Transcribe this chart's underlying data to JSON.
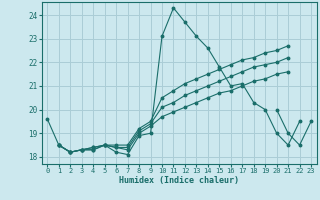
{
  "xlabel": "Humidex (Indice chaleur)",
  "background_color": "#cce8ee",
  "grid_color": "#aacdd6",
  "line_color": "#1a6e6a",
  "xlim": [
    -0.5,
    23.5
  ],
  "ylim": [
    17.7,
    24.55
  ],
  "xticks": [
    0,
    1,
    2,
    3,
    4,
    5,
    6,
    7,
    8,
    9,
    10,
    11,
    12,
    13,
    14,
    15,
    16,
    17,
    18,
    19,
    20,
    21,
    22,
    23
  ],
  "yticks": [
    18,
    19,
    20,
    21,
    22,
    23,
    24
  ],
  "series": [
    [
      19.6,
      18.5,
      18.2,
      18.3,
      18.3,
      18.5,
      18.2,
      18.1,
      18.9,
      19.0,
      23.1,
      24.3,
      23.7,
      23.1,
      22.6,
      21.8,
      21.0,
      21.1,
      20.3,
      20.0,
      19.0,
      18.5,
      19.5,
      null
    ],
    [
      null,
      18.5,
      18.2,
      18.3,
      18.3,
      18.5,
      18.4,
      18.3,
      19.0,
      19.3,
      19.7,
      19.9,
      20.1,
      20.3,
      20.5,
      20.7,
      20.8,
      21.0,
      21.2,
      21.3,
      21.5,
      21.6,
      null,
      null
    ],
    [
      null,
      18.5,
      18.2,
      18.3,
      18.4,
      18.5,
      18.4,
      18.4,
      19.1,
      19.4,
      20.1,
      20.3,
      20.6,
      20.8,
      21.0,
      21.2,
      21.4,
      21.6,
      21.8,
      21.9,
      22.0,
      22.2,
      null,
      null
    ],
    [
      null,
      18.5,
      18.2,
      18.3,
      18.4,
      18.5,
      18.5,
      18.5,
      19.2,
      19.5,
      20.5,
      20.8,
      21.1,
      21.3,
      21.5,
      21.7,
      21.9,
      22.1,
      22.2,
      22.4,
      22.5,
      22.7,
      null,
      null
    ],
    [
      null,
      null,
      null,
      null,
      null,
      null,
      null,
      null,
      null,
      null,
      null,
      null,
      null,
      null,
      null,
      null,
      null,
      null,
      null,
      null,
      20.0,
      19.0,
      18.5,
      19.5
    ]
  ]
}
